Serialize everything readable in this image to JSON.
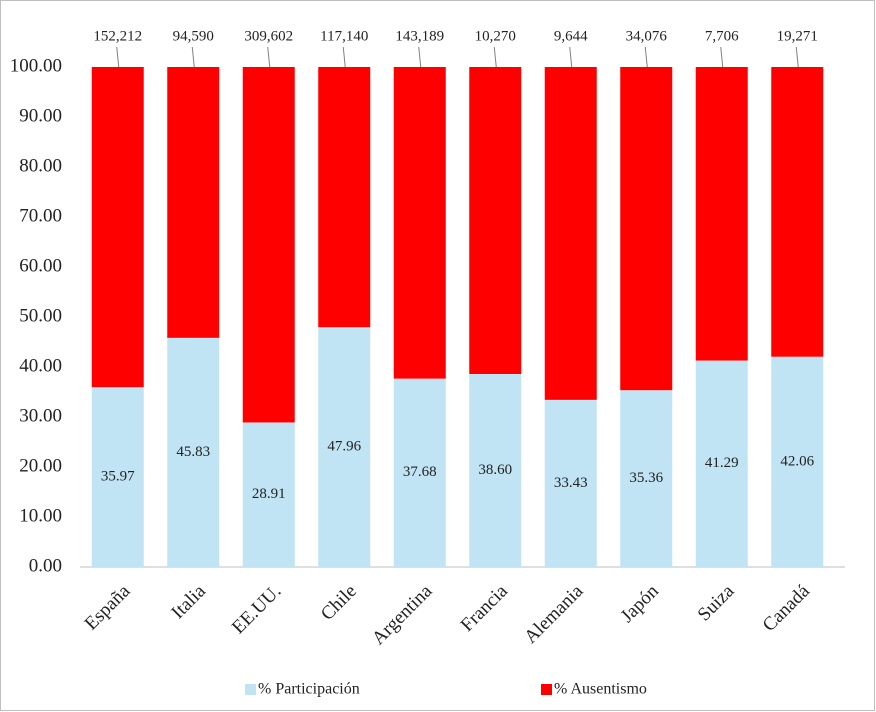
{
  "chart_data": {
    "type": "stacked-bar",
    "categories": [
      "España",
      "Italia",
      "EE.UU.",
      "Chile",
      "Argentina",
      "Francia",
      "Alemania",
      "Japón",
      "Suiza",
      "Canadá"
    ],
    "series": [
      {
        "name": "% Participación",
        "color": "#c1e4f5",
        "values": [
          35.97,
          45.83,
          28.91,
          47.96,
          37.68,
          38.6,
          33.43,
          35.36,
          41.29,
          42.06
        ],
        "value_labels": [
          "35.97",
          "45.83",
          "28.91",
          "47.96",
          "37.68",
          "38.60",
          "33.43",
          "35.36",
          "41.29",
          "42.06"
        ]
      },
      {
        "name": "% Ausentismo",
        "color": "#ff0000",
        "values": [
          64.03,
          54.17,
          71.09,
          52.04,
          62.32,
          61.4,
          66.57,
          64.64,
          58.71,
          57.94
        ]
      }
    ],
    "annotations": [
      {
        "value": 152212,
        "label": "152,212"
      },
      {
        "value": 94590,
        "label": "94,590"
      },
      {
        "value": 309602,
        "label": "309,602"
      },
      {
        "value": 117140,
        "label": "117,140"
      },
      {
        "value": 143189,
        "label": "143,189"
      },
      {
        "value": 10270,
        "label": "10,270"
      },
      {
        "value": 9644,
        "label": "9,644"
      },
      {
        "value": 34076,
        "label": "34,076"
      },
      {
        "value": 7706,
        "label": "7,706"
      },
      {
        "value": 19271,
        "label": "19,271"
      }
    ],
    "ylim": [
      0,
      100
    ],
    "yticks": [
      {
        "value": 0,
        "label": "0.00"
      },
      {
        "value": 10,
        "label": "10.00"
      },
      {
        "value": 20,
        "label": "20.00"
      },
      {
        "value": 30,
        "label": "30.00"
      },
      {
        "value": 40,
        "label": "40.00"
      },
      {
        "value": 50,
        "label": "50.00"
      },
      {
        "value": 60,
        "label": "60.00"
      },
      {
        "value": 70,
        "label": "70.00"
      },
      {
        "value": 80,
        "label": "80.00"
      },
      {
        "value": 90,
        "label": "90.00"
      },
      {
        "value": 100,
        "label": "100.00"
      }
    ],
    "legend": "bottom"
  }
}
